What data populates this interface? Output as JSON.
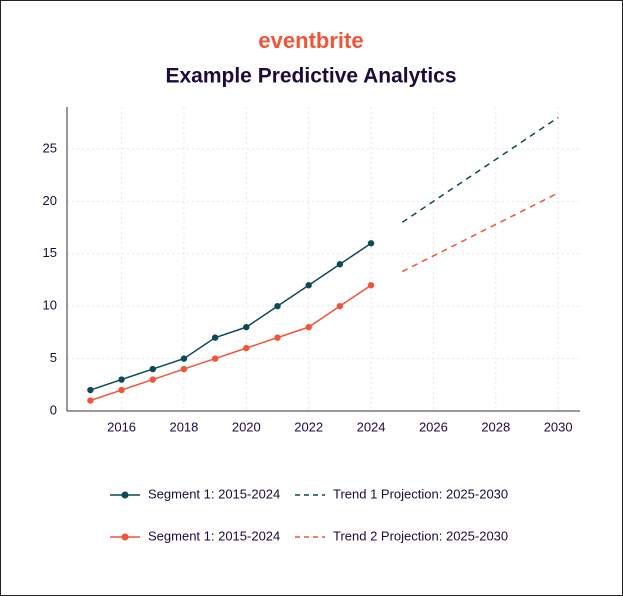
{
  "brand": "eventbrite",
  "chart_data": {
    "type": "line",
    "title": "Example Predictive Analytics",
    "xlim": [
      2014.25,
      2030.7
    ],
    "ylim": [
      0,
      29
    ],
    "xticks": [
      2016,
      2018,
      2020,
      2022,
      2024,
      2026,
      2028,
      2030
    ],
    "yticks": [
      0,
      5,
      10,
      15,
      20,
      25
    ],
    "grid": true,
    "legend": "bottom",
    "series": [
      {
        "name": "Segment 1: 2015-2024",
        "color": "#0d4a56",
        "markers": true,
        "dashed": false,
        "x": [
          2015,
          2016,
          2017,
          2018,
          2019,
          2020,
          2021,
          2022,
          2023,
          2024
        ],
        "values": [
          2,
          3,
          4,
          5,
          7,
          8,
          10,
          12,
          14,
          16
        ]
      },
      {
        "name": "Segment 1: 2015-2024",
        "color": "#f05537",
        "markers": true,
        "dashed": false,
        "x": [
          2015,
          2016,
          2017,
          2018,
          2019,
          2020,
          2021,
          2022,
          2023,
          2024
        ],
        "values": [
          1,
          2,
          3,
          4,
          5,
          6,
          7,
          8,
          10,
          12
        ]
      },
      {
        "name": "Trend 1 Projection: 2025-2030",
        "color": "#0d4a56",
        "markers": false,
        "dashed": true,
        "x": [
          2025,
          2030
        ],
        "values": [
          18,
          28
        ]
      },
      {
        "name": "Trend 2 Projection: 2025-2030",
        "color": "#f05537",
        "markers": false,
        "dashed": true,
        "x": [
          2025,
          2030
        ],
        "values": [
          13.3,
          20.8
        ]
      }
    ]
  }
}
